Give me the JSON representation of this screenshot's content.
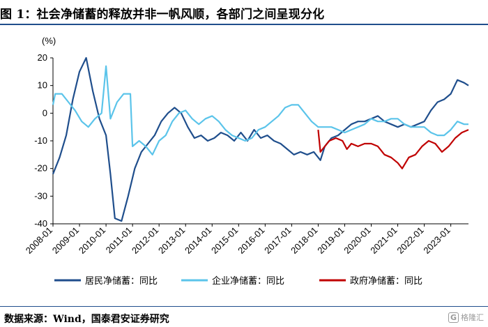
{
  "page": {
    "title": "图 1：社会净储蓄的释放并非一帆风顺，各部门之间呈现分化",
    "source": "数据来源：Wind，国泰君安证券研究",
    "watermark_icon": "G",
    "watermark_text": "格隆汇"
  },
  "chart_data": {
    "type": "line",
    "ylabel": "(%)",
    "ylim": [
      -40,
      20
    ],
    "yticks": [
      20,
      10,
      0,
      -10,
      -20,
      -30,
      -40
    ],
    "xlim": [
      "2008-01",
      "2023-09"
    ],
    "xticks": [
      "2008-01",
      "2009-01",
      "2010-01",
      "2011-01",
      "2012-01",
      "2013-01",
      "2014-01",
      "2015-01",
      "2016-01",
      "2017-01",
      "2018-01",
      "2019-01",
      "2020-01",
      "2021-01",
      "2022-01",
      "2023-01"
    ],
    "legend_position": "bottom",
    "grid": false,
    "series": [
      {
        "name": "居民净储蓄：同比",
        "color": "#1f4e8c",
        "points": [
          [
            "2008-01",
            -22
          ],
          [
            "2008-04",
            -16
          ],
          [
            "2008-07",
            -8
          ],
          [
            "2008-10",
            5
          ],
          [
            "2009-01",
            15
          ],
          [
            "2009-04",
            20
          ],
          [
            "2009-07",
            8
          ],
          [
            "2009-10",
            -2
          ],
          [
            "2010-01",
            -8
          ],
          [
            "2010-03",
            -22
          ],
          [
            "2010-05",
            -38
          ],
          [
            "2010-08",
            -39
          ],
          [
            "2010-11",
            -30
          ],
          [
            "2011-02",
            -20
          ],
          [
            "2011-05",
            -14
          ],
          [
            "2011-08",
            -11
          ],
          [
            "2011-11",
            -8
          ],
          [
            "2012-02",
            -3
          ],
          [
            "2012-05",
            0
          ],
          [
            "2012-08",
            2
          ],
          [
            "2012-11",
            0
          ],
          [
            "2013-02",
            -5
          ],
          [
            "2013-05",
            -9
          ],
          [
            "2013-08",
            -8
          ],
          [
            "2013-11",
            -10
          ],
          [
            "2014-02",
            -9
          ],
          [
            "2014-05",
            -7
          ],
          [
            "2014-08",
            -8
          ],
          [
            "2014-11",
            -10
          ],
          [
            "2015-02",
            -7
          ],
          [
            "2015-05",
            -10
          ],
          [
            "2015-08",
            -6
          ],
          [
            "2015-11",
            -9
          ],
          [
            "2016-02",
            -8
          ],
          [
            "2016-05",
            -10
          ],
          [
            "2016-08",
            -11
          ],
          [
            "2016-11",
            -13
          ],
          [
            "2017-02",
            -15
          ],
          [
            "2017-05",
            -14
          ],
          [
            "2017-08",
            -15
          ],
          [
            "2017-11",
            -14
          ],
          [
            "2018-02",
            -17
          ],
          [
            "2018-04",
            -12
          ],
          [
            "2018-07",
            -9
          ],
          [
            "2018-10",
            -8
          ],
          [
            "2019-01",
            -6
          ],
          [
            "2019-04",
            -4
          ],
          [
            "2019-07",
            -3
          ],
          [
            "2019-10",
            -3
          ],
          [
            "2020-01",
            -2
          ],
          [
            "2020-04",
            -1
          ],
          [
            "2020-07",
            -3
          ],
          [
            "2020-10",
            -4
          ],
          [
            "2021-01",
            -5
          ],
          [
            "2021-04",
            -4
          ],
          [
            "2021-07",
            -5
          ],
          [
            "2021-10",
            -4
          ],
          [
            "2022-01",
            -3
          ],
          [
            "2022-04",
            1
          ],
          [
            "2022-07",
            4
          ],
          [
            "2022-10",
            5
          ],
          [
            "2023-01",
            7
          ],
          [
            "2023-04",
            12
          ],
          [
            "2023-07",
            11
          ],
          [
            "2023-09",
            10
          ]
        ]
      },
      {
        "name": "企业净储蓄：同比",
        "color": "#5bc4ea",
        "points": [
          [
            "2008-01",
            3
          ],
          [
            "2008-02",
            7
          ],
          [
            "2008-05",
            7
          ],
          [
            "2008-08",
            4
          ],
          [
            "2008-11",
            1
          ],
          [
            "2009-02",
            -3
          ],
          [
            "2009-05",
            -5
          ],
          [
            "2009-08",
            -2
          ],
          [
            "2009-11",
            0
          ],
          [
            "2010-01",
            17
          ],
          [
            "2010-03",
            -2
          ],
          [
            "2010-06",
            4
          ],
          [
            "2010-09",
            7
          ],
          [
            "2010-12",
            7
          ],
          [
            "2011-01",
            -12
          ],
          [
            "2011-04",
            -10
          ],
          [
            "2011-07",
            -12
          ],
          [
            "2011-10",
            -15
          ],
          [
            "2012-01",
            -10
          ],
          [
            "2012-04",
            -8
          ],
          [
            "2012-07",
            -3
          ],
          [
            "2012-10",
            0
          ],
          [
            "2013-01",
            1
          ],
          [
            "2013-04",
            -2
          ],
          [
            "2013-07",
            -4
          ],
          [
            "2013-10",
            -2
          ],
          [
            "2014-01",
            -1
          ],
          [
            "2014-04",
            -3
          ],
          [
            "2014-07",
            -6
          ],
          [
            "2014-10",
            -8
          ],
          [
            "2015-01",
            -9
          ],
          [
            "2015-04",
            -10
          ],
          [
            "2015-07",
            -9
          ],
          [
            "2015-10",
            -6
          ],
          [
            "2016-01",
            -5
          ],
          [
            "2016-04",
            -3
          ],
          [
            "2016-07",
            -1
          ],
          [
            "2016-10",
            2
          ],
          [
            "2017-01",
            3
          ],
          [
            "2017-04",
            3
          ],
          [
            "2017-07",
            0
          ],
          [
            "2017-10",
            -3
          ],
          [
            "2018-01",
            -5
          ],
          [
            "2018-04",
            -5
          ],
          [
            "2018-07",
            -5
          ],
          [
            "2018-10",
            -6
          ],
          [
            "2019-01",
            -7
          ],
          [
            "2019-04",
            -6
          ],
          [
            "2019-07",
            -5
          ],
          [
            "2019-10",
            -4
          ],
          [
            "2020-01",
            -2
          ],
          [
            "2020-04",
            -3
          ],
          [
            "2020-07",
            -3
          ],
          [
            "2020-10",
            -2
          ],
          [
            "2021-01",
            -2
          ],
          [
            "2021-04",
            -4
          ],
          [
            "2021-07",
            -5
          ],
          [
            "2021-10",
            -5
          ],
          [
            "2022-01",
            -5
          ],
          [
            "2022-04",
            -7
          ],
          [
            "2022-07",
            -8
          ],
          [
            "2022-10",
            -8
          ],
          [
            "2023-01",
            -6
          ],
          [
            "2023-04",
            -3
          ],
          [
            "2023-07",
            -4
          ],
          [
            "2023-09",
            -4
          ]
        ]
      },
      {
        "name": "政府净储蓄：同比",
        "color": "#c00000",
        "points": [
          [
            "2018-01",
            -6
          ],
          [
            "2018-02",
            -14
          ],
          [
            "2018-04",
            -12
          ],
          [
            "2018-06",
            -10
          ],
          [
            "2018-09",
            -9
          ],
          [
            "2018-12",
            -10
          ],
          [
            "2019-02",
            -13
          ],
          [
            "2019-04",
            -11
          ],
          [
            "2019-07",
            -12
          ],
          [
            "2019-10",
            -11
          ],
          [
            "2020-01",
            -11
          ],
          [
            "2020-04",
            -12
          ],
          [
            "2020-07",
            -15
          ],
          [
            "2020-10",
            -16
          ],
          [
            "2021-01",
            -18
          ],
          [
            "2021-03",
            -20
          ],
          [
            "2021-06",
            -16
          ],
          [
            "2021-09",
            -15
          ],
          [
            "2021-12",
            -12
          ],
          [
            "2022-03",
            -10
          ],
          [
            "2022-06",
            -11
          ],
          [
            "2022-09",
            -14
          ],
          [
            "2022-12",
            -12
          ],
          [
            "2023-03",
            -9
          ],
          [
            "2023-06",
            -7
          ],
          [
            "2023-09",
            -6
          ]
        ]
      }
    ]
  }
}
